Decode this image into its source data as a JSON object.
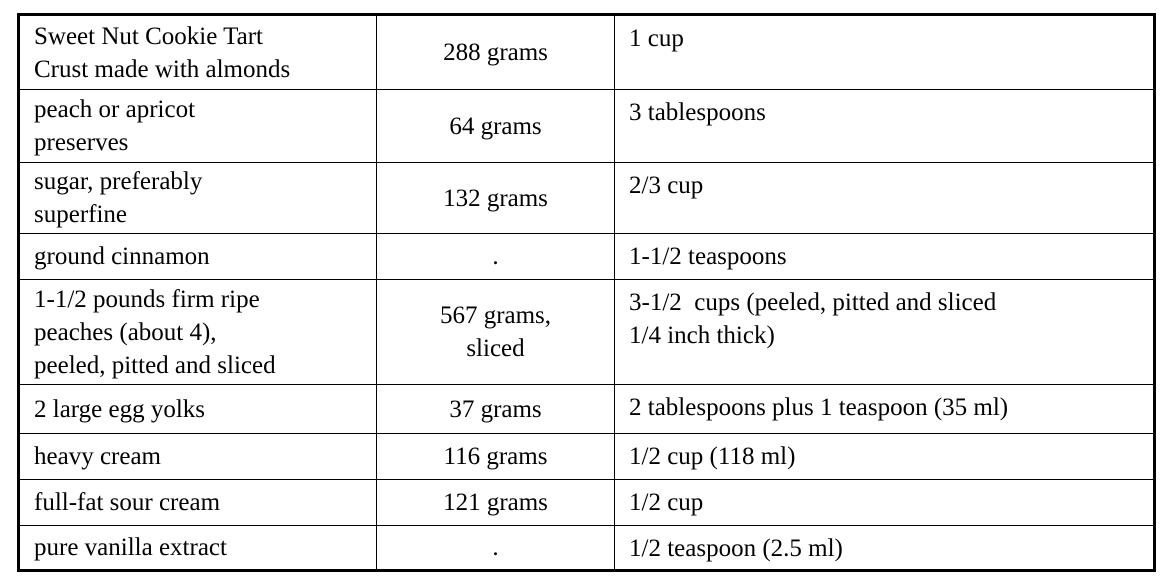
{
  "table": {
    "rows": [
      [
        [
          "Sweet Nut Cookie Tart",
          "Crust made with almonds"
        ],
        [
          "288 grams"
        ],
        [
          "1 cup"
        ]
      ],
      [
        [
          "peach or apricot",
          "preserves"
        ],
        [
          "64 grams"
        ],
        [
          "3 tablespoons"
        ]
      ],
      [
        [
          "sugar, preferably",
          "superfine"
        ],
        [
          "132 grams"
        ],
        [
          "2/3 cup"
        ]
      ],
      [
        [
          "ground cinnamon"
        ],
        [
          "."
        ],
        [
          "1-1/2 teaspoons"
        ]
      ],
      [
        [
          "1-1/2 pounds firm ripe",
          "peaches (about 4),",
          "peeled, pitted and sliced"
        ],
        [
          "567 grams,",
          "sliced"
        ],
        [
          "3-1/2  cups (peeled, pitted and sliced",
          "1/4 inch thick)"
        ]
      ],
      [
        [
          "2 large egg yolks"
        ],
        [
          "37 grams"
        ],
        [
          "2 tablespoons plus 1 teaspoon (35 ml)"
        ]
      ],
      [
        [
          "heavy cream"
        ],
        [
          "116 grams"
        ],
        [
          "1/2 cup (118 ml)"
        ]
      ],
      [
        [
          "full-fat sour cream"
        ],
        [
          "121 grams"
        ],
        [
          "1/2 cup"
        ]
      ],
      [
        [
          "pure vanilla extract"
        ],
        [
          "."
        ],
        [
          "1/2 teaspoon (2.5 ml)"
        ]
      ]
    ]
  }
}
